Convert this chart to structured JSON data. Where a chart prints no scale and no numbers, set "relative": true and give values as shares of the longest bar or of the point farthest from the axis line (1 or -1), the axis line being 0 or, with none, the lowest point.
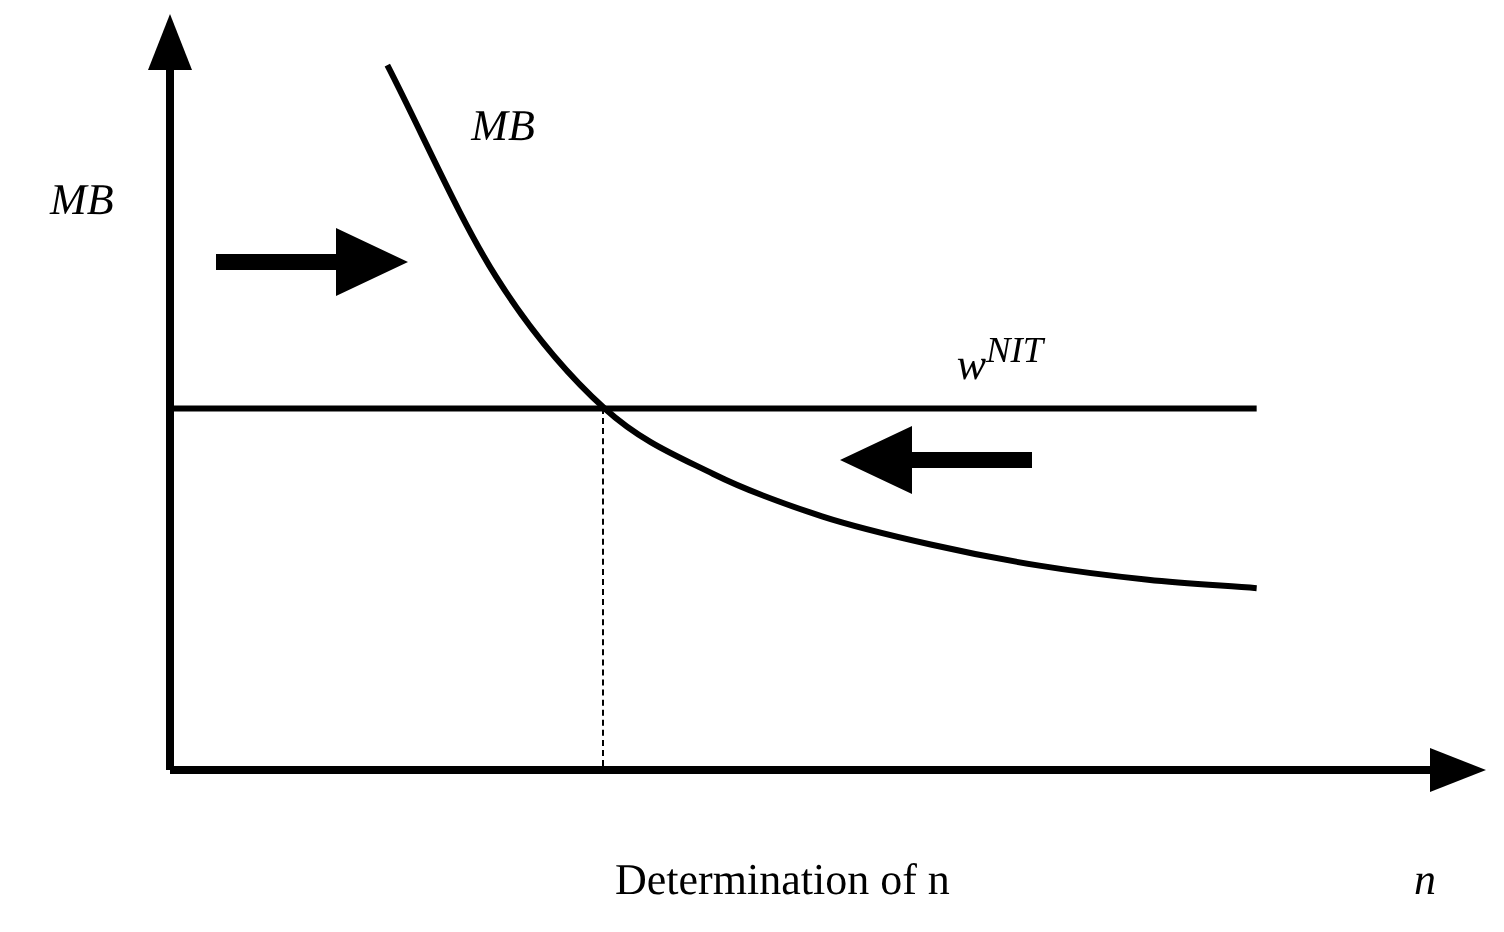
{
  "chart_data": {
    "type": "line",
    "relative": true,
    "ylabel": "MB",
    "xlabel": "n",
    "legend": false,
    "marker": "none",
    "categories": [
      null,
      null,
      null,
      null,
      null,
      null,
      null,
      null,
      null,
      null,
      null,
      null,
      null
    ],
    "series": [
      {
        "name": "MB",
        "color": "#000000",
        "values": [
          null,
          null,
          1.0,
          0.7,
          0.513,
          0.42,
          0.36,
          0.32,
          0.29,
          0.27,
          0.258,
          null,
          null
        ]
      },
      {
        "name": "w$^{NIT}$",
        "color": "#000000",
        "values": [
          0.513,
          0.513,
          0.513,
          0.513,
          0.513,
          0.513,
          0.513,
          0.513,
          0.513,
          0.513,
          0.513,
          null,
          null
        ]
      }
    ],
    "annotations": [
      "Determination of n"
    ]
  }
}
